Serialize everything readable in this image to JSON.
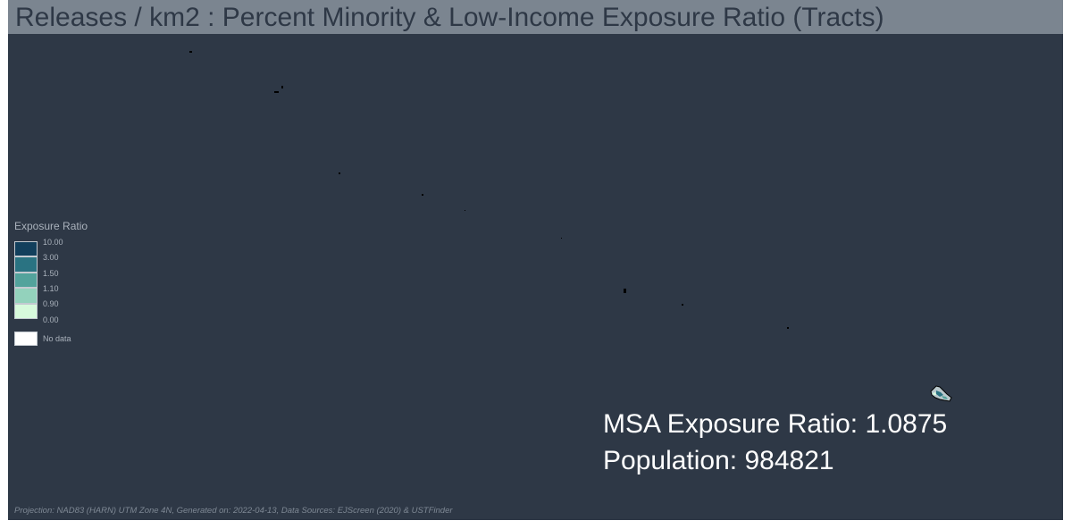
{
  "title": "Releases / km2 : Percent Minority & Low-Income Exposure Ratio (Tracts)",
  "legend": {
    "title": "Exposure Ratio",
    "breaks": [
      "10.00",
      "3.00",
      "1.50",
      "1.10",
      "0.90",
      "0.00"
    ],
    "colors": [
      "#123f5c",
      "#2a7382",
      "#53a39c",
      "#93d2bc",
      "#d7fadc"
    ],
    "no_data_label": "No data",
    "no_data_color": "#ffffff"
  },
  "stats": {
    "exposure_ratio_line": "MSA Exposure Ratio: 1.0875",
    "population_line": "Population: 984821"
  },
  "footer": "Projection: NAD83 (HARN) UTM Zone 4N, Generated on: 2022-04-13, Data Sources: EJScreen (2020) & USTFinder",
  "colors": {
    "map_background": "#2e3846",
    "title_bar": "#7b8590",
    "title_text": "#2e3846"
  }
}
